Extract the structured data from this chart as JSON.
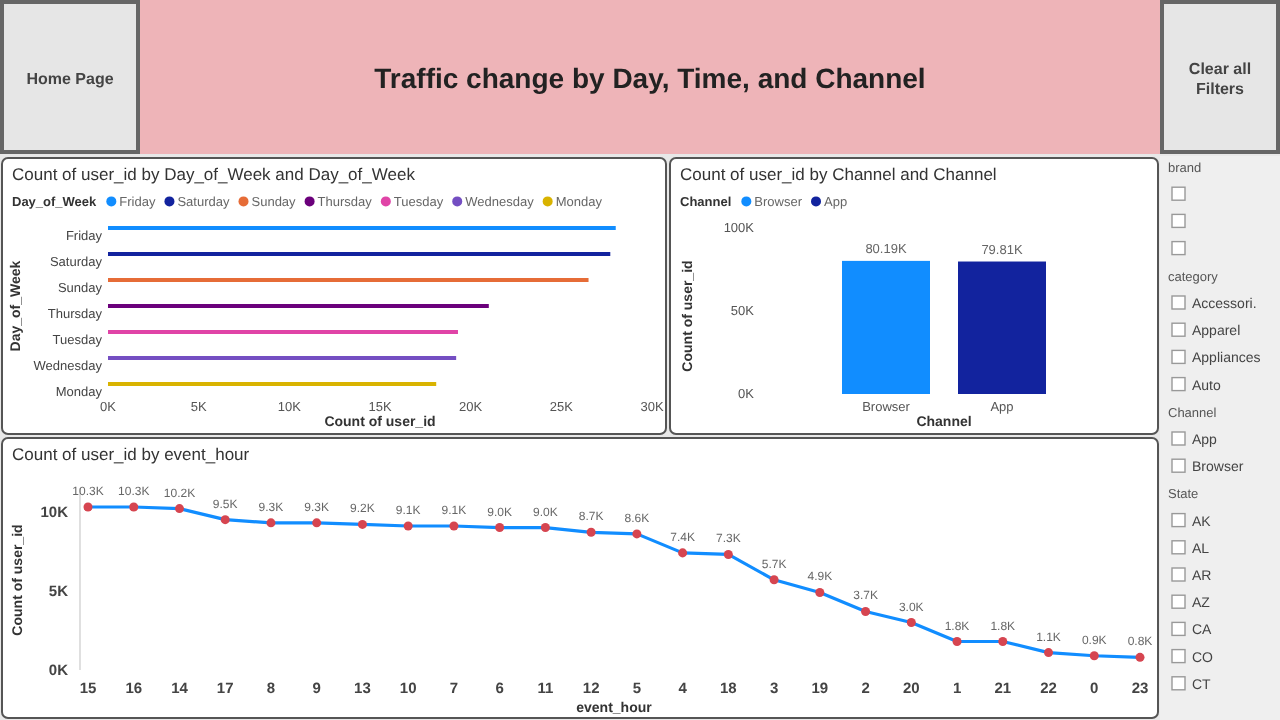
{
  "chart_data": [
    {
      "type": "other",
      "title": "Traffic change by Day, Time, and Channel",
      "annotations": [
        "Home Page",
        "Clear all Filters"
      ]
    },
    {
      "type": "bar",
      "orientation": "horizontal",
      "title": "Count of user_id by Day_of_Week and Day_of_Week",
      "legend_title": "Day_of_Week",
      "legend": "top left",
      "xlabel": "Count of user_id",
      "ylabel": "Day_of_Week",
      "categories": [
        "Friday",
        "Saturday",
        "Sunday",
        "Thursday",
        "Tuesday",
        "Wednesday",
        "Monday"
      ],
      "xlim": [
        0,
        30000
      ],
      "xticks": [
        {
          "value": 0,
          "label": "0K"
        },
        {
          "value": 5000,
          "label": "5K"
        },
        {
          "value": 10000,
          "label": "10K"
        },
        {
          "value": 15000,
          "label": "15K"
        },
        {
          "value": 20000,
          "label": "20K"
        },
        {
          "value": 25000,
          "label": "25K"
        },
        {
          "value": 30000,
          "label": "30K"
        }
      ],
      "series": [
        {
          "name": "Friday",
          "color": "#118dff",
          "values": [
            28000,
            null,
            null,
            null,
            null,
            null,
            null
          ]
        },
        {
          "name": "Saturday",
          "color": "#12239e",
          "values": [
            null,
            27700,
            null,
            null,
            null,
            null,
            null
          ]
        },
        {
          "name": "Sunday",
          "color": "#e66c37",
          "values": [
            null,
            null,
            26500,
            null,
            null,
            null,
            null
          ]
        },
        {
          "name": "Thursday",
          "color": "#6b007b",
          "values": [
            null,
            null,
            null,
            21000,
            null,
            null,
            null
          ]
        },
        {
          "name": "Tuesday",
          "color": "#e044a7",
          "values": [
            null,
            null,
            null,
            null,
            19300,
            null,
            null
          ]
        },
        {
          "name": "Wednesday",
          "color": "#744ec2",
          "values": [
            null,
            null,
            null,
            null,
            null,
            19200,
            null
          ]
        },
        {
          "name": "Monday",
          "color": "#d9b300",
          "values": [
            null,
            null,
            null,
            null,
            null,
            null,
            18100
          ]
        }
      ]
    },
    {
      "type": "bar",
      "title": "Count of user_id by Channel and Channel",
      "legend_title": "Channel",
      "legend": "top left",
      "xlabel": "Channel",
      "ylabel": "Count of user_id",
      "categories": [
        "Browser",
        "App"
      ],
      "ylim": [
        0,
        100000
      ],
      "yticks": [
        {
          "value": 0,
          "label": "0K"
        },
        {
          "value": 50000,
          "label": "50K"
        },
        {
          "value": 100000,
          "label": "100K"
        }
      ],
      "series": [
        {
          "name": "Browser",
          "color": "#118dff",
          "values": [
            80190,
            null
          ],
          "value_labels": [
            "80.19K",
            null
          ]
        },
        {
          "name": "App",
          "color": "#12239e",
          "values": [
            null,
            79810
          ],
          "value_labels": [
            null,
            "79.81K"
          ]
        }
      ]
    },
    {
      "type": "line",
      "title": "Count of user_id by event_hour",
      "xlabel": "event_hour",
      "ylabel": "Count of user_id",
      "marker": "circle",
      "color": "#118dff",
      "categories": [
        "15",
        "16",
        "14",
        "17",
        "8",
        "9",
        "13",
        "10",
        "7",
        "6",
        "11",
        "12",
        "5",
        "4",
        "18",
        "3",
        "19",
        "2",
        "20",
        "1",
        "21",
        "22",
        "0",
        "23"
      ],
      "values": [
        10300,
        10300,
        10200,
        9500,
        9300,
        9300,
        9200,
        9100,
        9100,
        9000,
        9000,
        8700,
        8600,
        7400,
        7300,
        5700,
        4900,
        3700,
        3000,
        1800,
        1800,
        1100,
        900,
        800
      ],
      "value_labels": [
        "10.3K",
        "10.3K",
        "10.2K",
        "9.5K",
        "9.3K",
        "9.3K",
        "9.2K",
        "9.1K",
        "9.1K",
        "9.0K",
        "9.0K",
        "8.7K",
        "8.6K",
        "7.4K",
        "7.3K",
        "5.7K",
        "4.9K",
        "3.7K",
        "3.0K",
        "1.8K",
        "1.8K",
        "1.1K",
        "0.9K",
        "0.8K"
      ],
      "ylim": [
        0,
        11500
      ],
      "yticks": [
        {
          "value": 0,
          "label": "0K"
        },
        {
          "value": 5000,
          "label": "5K"
        },
        {
          "value": 10000,
          "label": "10K"
        }
      ]
    },
    {
      "type": "other",
      "title": "brand",
      "categories": [
        null,
        null,
        null
      ]
    },
    {
      "type": "other",
      "title": "category",
      "categories": [
        "Accessori.",
        "Apparel",
        "Appliances",
        "Auto"
      ]
    },
    {
      "type": "other",
      "title": "Channel",
      "categories": [
        "App",
        "Browser"
      ]
    },
    {
      "type": "other",
      "title": "State",
      "categories": [
        "AK",
        "AL",
        "AR",
        "AZ",
        "CA",
        "CO",
        "CT"
      ]
    }
  ]
}
